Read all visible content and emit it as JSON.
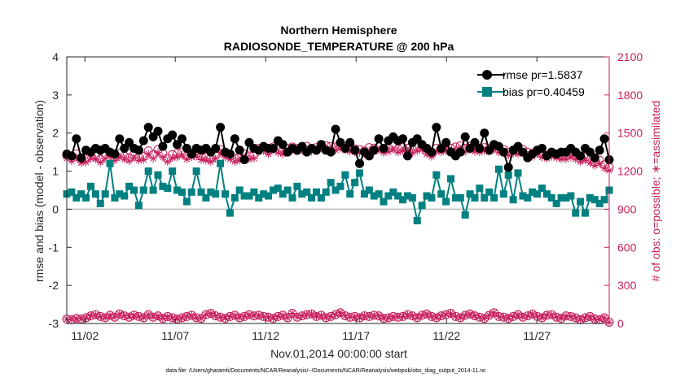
{
  "chart_data": {
    "type": "line",
    "title_line1": "Northern Hemisphere",
    "title_line2": "RADIOSONDE_TEMPERATURE @ 200 hPa",
    "xlabel": "Nov.01,2014 00:00:00 start",
    "ylabel_left": "rmse and bias (model - observation)",
    "ylabel_right": "# of obs: o=possible; ∗=assimilated",
    "footnote": "data file: /Users/gharamti/Documents/NCAR/Reanalysis/~/Documents/NCAR/Reanalysis/webpub/obs_diag_output_2014-11.nc",
    "xlim": [
      1,
      31
    ],
    "ylim_left": [
      -3,
      4
    ],
    "ylim_right": [
      0,
      2100
    ],
    "x_ticks": [
      {
        "day": 2,
        "label": "11/02"
      },
      {
        "day": 7,
        "label": "11/07"
      },
      {
        "day": 12,
        "label": "11/12"
      },
      {
        "day": 17,
        "label": "11/17"
      },
      {
        "day": 22,
        "label": "11/22"
      },
      {
        "day": 27,
        "label": "11/27"
      }
    ],
    "y_ticks_left": [
      -3,
      -2,
      -1,
      0,
      1,
      2,
      3,
      4
    ],
    "y_ticks_right": [
      0,
      300,
      600,
      900,
      1200,
      1500,
      1800,
      2100
    ],
    "colors": {
      "rmse": "#000000",
      "bias": "#008080",
      "obs": "#c71f5d",
      "zero_line": "#bdbdbd"
    },
    "series": [
      {
        "name": "rmse pr=1.5837",
        "axis": "left",
        "values": [
          1.45,
          1.4,
          1.85,
          1.35,
          1.55,
          1.5,
          1.6,
          1.55,
          1.6,
          1.5,
          1.45,
          1.85,
          1.6,
          1.75,
          1.6,
          1.55,
          1.8,
          2.15,
          1.9,
          2.05,
          1.65,
          1.85,
          1.95,
          1.7,
          1.85,
          1.6,
          1.45,
          1.6,
          1.55,
          1.6,
          1.5,
          1.6,
          2.15,
          1.5,
          1.45,
          1.85,
          1.55,
          1.3,
          1.75,
          1.6,
          1.55,
          1.65,
          1.6,
          1.6,
          1.8,
          1.7,
          1.5,
          1.6,
          1.55,
          1.65,
          1.5,
          1.6,
          1.55,
          1.7,
          1.55,
          1.5,
          2.1,
          1.75,
          1.6,
          1.75,
          1.55,
          1.2,
          1.5,
          1.4,
          1.55,
          1.85,
          1.6,
          1.8,
          1.9,
          1.8,
          1.85,
          1.4,
          1.75,
          1.85,
          1.7,
          1.6,
          1.5,
          2.15,
          1.6,
          1.75,
          1.5,
          1.4,
          1.5,
          1.9,
          1.6,
          1.75,
          1.6,
          2.0,
          1.55,
          1.7,
          1.65,
          1.5,
          1.1,
          1.55,
          1.65,
          1.5,
          1.35,
          1.45,
          1.55,
          1.6,
          1.4,
          1.5,
          1.45,
          1.5,
          1.5,
          1.6,
          1.5,
          1.4,
          1.6,
          1.5,
          1.35,
          1.55,
          1.85,
          1.3
        ],
        "marker": "filled-circle"
      },
      {
        "name": "bias pr=0.40459",
        "axis": "left",
        "values": [
          0.4,
          0.45,
          0.3,
          0.4,
          0.3,
          0.6,
          0.4,
          0.15,
          0.4,
          1.2,
          0.3,
          0.4,
          0.35,
          0.6,
          0.5,
          0.1,
          0.5,
          1.0,
          0.5,
          0.9,
          0.6,
          0.55,
          1.0,
          0.5,
          0.45,
          0.2,
          0.45,
          1.0,
          0.45,
          0.3,
          0.45,
          0.4,
          1.2,
          0.4,
          -0.1,
          0.3,
          0.5,
          0.35,
          0.35,
          0.45,
          0.3,
          0.4,
          0.35,
          0.5,
          0.55,
          0.4,
          0.5,
          0.3,
          0.6,
          0.4,
          0.45,
          0.3,
          0.45,
          0.3,
          0.45,
          0.7,
          0.5,
          0.6,
          0.9,
          0.4,
          0.7,
          0.95,
          0.4,
          0.5,
          0.35,
          0.4,
          0.2,
          0.35,
          0.45,
          0.35,
          0.25,
          0.35,
          0.3,
          -0.3,
          0.1,
          0.35,
          0.3,
          0.9,
          0.4,
          0.2,
          0.8,
          0.3,
          0.3,
          -0.15,
          0.4,
          0.3,
          0.55,
          0.3,
          0.45,
          0.3,
          1.05,
          0.4,
          0.9,
          0.25,
          0.95,
          0.35,
          0.3,
          0.45,
          0.4,
          0.55,
          0.4,
          0.3,
          0.15,
          0.3,
          0.3,
          0.35,
          -0.1,
          0.2,
          -0.1,
          0.3,
          0.25,
          0.15,
          0.25,
          0.5
        ],
        "marker": "filled-square"
      },
      {
        "name": "obs possible",
        "axis": "right",
        "values": [
          1325,
          1305,
          1335,
          1290,
          1300,
          1325,
          1320,
          1295,
          1330,
          1345,
          1310,
          1340,
          1320,
          1305,
          1330,
          1310,
          1315,
          1360,
          1330,
          1370,
          1340,
          1300,
          1330,
          1340,
          1350,
          1320,
          1340,
          1340,
          1320,
          1310,
          1300,
          1330,
          1370,
          1340,
          1320,
          1300,
          1310,
          1335,
          1320,
          1330,
          1380,
          1385,
          1360,
          1390,
          1370,
          1360,
          1380,
          1390,
          1380,
          1385,
          1395,
          1380,
          1385,
          1405,
          1400,
          1395,
          1390,
          1405,
          1390,
          1380,
          1375,
          1370,
          1360,
          1385,
          1380,
          1390,
          1370,
          1380,
          1395,
          1375,
          1385,
          1380,
          1370,
          1385,
          1395,
          1360,
          1340,
          1380,
          1375,
          1385,
          1380,
          1390,
          1400,
          1380,
          1395,
          1380,
          1375,
          1385,
          1380,
          1395,
          1375,
          1370,
          1350,
          1365,
          1360,
          1370,
          1350,
          1340,
          1360,
          1335,
          1325,
          1340,
          1330,
          1320,
          1320,
          1335,
          1320,
          1300,
          1310,
          1290,
          1270,
          1285,
          1250,
          1230
        ],
        "marker": "open-circle"
      },
      {
        "name": "obs assimilated",
        "axis": "right",
        "values": [
          1300,
          1280,
          1310,
          1265,
          1270,
          1300,
          1295,
          1270,
          1300,
          1320,
          1285,
          1310,
          1295,
          1280,
          1305,
          1285,
          1290,
          1335,
          1300,
          1345,
          1310,
          1275,
          1305,
          1310,
          1325,
          1295,
          1310,
          1315,
          1290,
          1285,
          1275,
          1300,
          1345,
          1310,
          1295,
          1275,
          1285,
          1310,
          1295,
          1300,
          1355,
          1360,
          1335,
          1365,
          1345,
          1335,
          1355,
          1365,
          1355,
          1360,
          1370,
          1355,
          1360,
          1380,
          1375,
          1370,
          1365,
          1380,
          1365,
          1355,
          1350,
          1345,
          1335,
          1360,
          1355,
          1365,
          1345,
          1355,
          1370,
          1350,
          1360,
          1355,
          1345,
          1360,
          1370,
          1335,
          1315,
          1355,
          1350,
          1360,
          1355,
          1365,
          1375,
          1355,
          1370,
          1355,
          1350,
          1360,
          1355,
          1370,
          1350,
          1345,
          1325,
          1340,
          1335,
          1345,
          1325,
          1315,
          1335,
          1310,
          1300,
          1315,
          1305,
          1295,
          1295,
          1310,
          1295,
          1275,
          1285,
          1265,
          1245,
          1260,
          1225,
          1205
        ],
        "marker": "asterisk"
      },
      {
        "name": "obs low possible",
        "axis": "right",
        "values": [
          35,
          30,
          40,
          35,
          45,
          60,
          70,
          55,
          45,
          65,
          50,
          75,
          60,
          50,
          65,
          55,
          45,
          70,
          50,
          60,
          40,
          55,
          45,
          35,
          45,
          55,
          65,
          45,
          40,
          70,
          80,
          60,
          50,
          40,
          55,
          65,
          45,
          55,
          70,
          60,
          65,
          55,
          50,
          40,
          55,
          65,
          45,
          80,
          50,
          60,
          70,
          75,
          55,
          65,
          45,
          55,
          70,
          85,
          60,
          50,
          55,
          45,
          60,
          55,
          65,
          60,
          40,
          45,
          55,
          50,
          55,
          70,
          60,
          45,
          65,
          75,
          55,
          45,
          60,
          70,
          80,
          55,
          45,
          65,
          75,
          60,
          50,
          40,
          65,
          85,
          55,
          50,
          40,
          55,
          70,
          50,
          60,
          75,
          55,
          45,
          65,
          70,
          50,
          40,
          60,
          55,
          45,
          30,
          45,
          55,
          35,
          30,
          45,
          10
        ],
        "marker": "open-circle"
      },
      {
        "name": "obs low assimilated",
        "axis": "right",
        "values": [
          35,
          30,
          40,
          35,
          45,
          60,
          70,
          55,
          45,
          65,
          50,
          75,
          60,
          50,
          65,
          55,
          45,
          70,
          50,
          60,
          40,
          55,
          45,
          35,
          45,
          55,
          65,
          45,
          40,
          70,
          80,
          60,
          50,
          40,
          55,
          65,
          45,
          55,
          70,
          60,
          65,
          55,
          50,
          40,
          55,
          65,
          45,
          80,
          50,
          60,
          70,
          75,
          55,
          65,
          45,
          55,
          70,
          85,
          60,
          50,
          55,
          45,
          60,
          55,
          65,
          60,
          40,
          45,
          55,
          50,
          55,
          70,
          60,
          45,
          65,
          75,
          55,
          45,
          60,
          70,
          80,
          55,
          45,
          65,
          75,
          60,
          50,
          40,
          65,
          85,
          55,
          50,
          40,
          55,
          70,
          50,
          60,
          75,
          55,
          45,
          65,
          70,
          50,
          40,
          60,
          55,
          45,
          30,
          45,
          55,
          35,
          30,
          45,
          10
        ],
        "marker": "asterisk"
      }
    ],
    "legend": [
      {
        "label": "rmse pr=1.5837",
        "series": "rmse"
      },
      {
        "label": "bias pr=0.40459",
        "series": "bias"
      }
    ]
  }
}
